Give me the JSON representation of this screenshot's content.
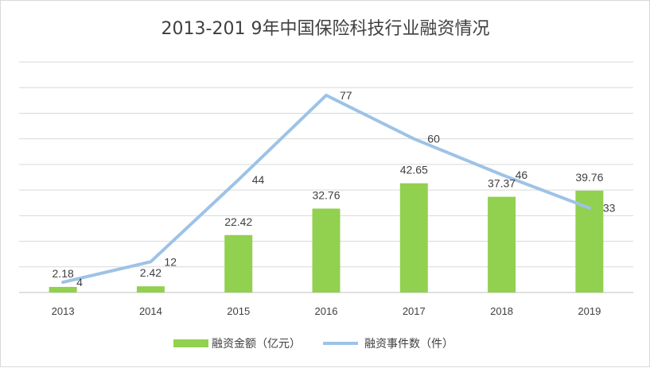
{
  "chart_data": {
    "type": "bar",
    "title": "2013-201 9年中国保险科技行业融资情况",
    "categories": [
      "2013",
      "2014",
      "2015",
      "2016",
      "2017",
      "2018",
      "2019"
    ],
    "series": [
      {
        "name": "融资金额（亿元）",
        "type": "bar",
        "color": "#92d050",
        "values": [
          2.18,
          2.42,
          22.42,
          32.76,
          42.65,
          37.37,
          39.76
        ],
        "labels": [
          "2.18",
          "2.42",
          "22.42",
          "32.76",
          "42.65",
          "37.37",
          "39.76"
        ]
      },
      {
        "name": "融资事件数（件）",
        "type": "line",
        "color": "#9dc3e6",
        "values": [
          4,
          12,
          44,
          77,
          60,
          46,
          33
        ],
        "labels": [
          "4",
          "12",
          "44",
          "77",
          "60",
          "46",
          "33"
        ]
      }
    ],
    "bar_axis_range": [
      0,
      90
    ],
    "line_axis_range": [
      0,
      90
    ],
    "grid": true,
    "legend_position": "bottom"
  }
}
